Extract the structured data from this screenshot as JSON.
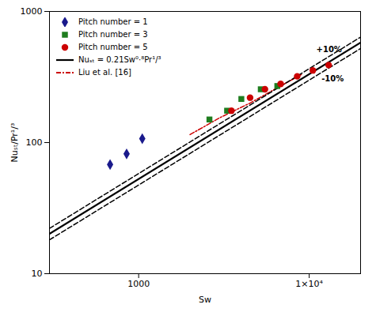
{
  "chart_data": {
    "type": "scatter",
    "x_label": "Sw",
    "y_label": "Nuₛₜ/Pr¹/³",
    "log": true,
    "xlim": [
      300,
      20000
    ],
    "ylim": [
      10,
      1000
    ],
    "xticks": [
      1000,
      {
        "value": 10000,
        "label": "1×10⁴"
      }
    ],
    "yticks": [
      10,
      100,
      1000
    ],
    "grid": false,
    "legend": "upper left",
    "series": [
      {
        "name": "Pitch number = 1",
        "type": "scatter",
        "marker": "diamond",
        "color": "#1a1a8c",
        "x": [
          680,
          850,
          1050
        ],
        "values": [
          68,
          82,
          107
        ]
      },
      {
        "name": "Pitch number = 3",
        "type": "scatter",
        "marker": "square",
        "color": "#1e7d1e",
        "x": [
          2600,
          3300,
          4000,
          5200,
          6500
        ],
        "values": [
          150,
          175,
          215,
          255,
          270
        ]
      },
      {
        "name": "Pitch number = 5",
        "type": "scatter",
        "marker": "circle",
        "color": "#cc0000",
        "x": [
          3500,
          4500,
          5500,
          6800,
          8500,
          10500,
          13000
        ],
        "values": [
          175,
          220,
          255,
          280,
          320,
          355,
          390
        ]
      },
      {
        "name": "Nuₛₜ = 0.21Sw⁰·⁸Pr¹/³",
        "type": "line",
        "line_style": "solid",
        "color": "#000000",
        "x": [
          300,
          20000
        ],
        "values": [
          20.13,
          579.49
        ]
      },
      {
        "name": "Liu et al. [16]",
        "type": "line",
        "line_style": "dashdot",
        "color": "#cc0000",
        "x": [
          2000,
          3000,
          4500,
          6500,
          9000
        ],
        "values": [
          115,
          155,
          200,
          262,
          330
        ]
      },
      {
        "type": "line",
        "line_style": "dashed",
        "color": "#000000",
        "x": [
          300,
          20000
        ],
        "values": [
          22.15,
          637.44
        ]
      },
      {
        "type": "line",
        "line_style": "dashed",
        "color": "#000000",
        "x": [
          300,
          20000
        ],
        "values": [
          18.12,
          521.54
        ]
      }
    ],
    "annotations": [
      {
        "text": "+10%",
        "x": 11000,
        "y": 490
      },
      {
        "text": "-10%",
        "x": 11800,
        "y": 295
      }
    ]
  }
}
